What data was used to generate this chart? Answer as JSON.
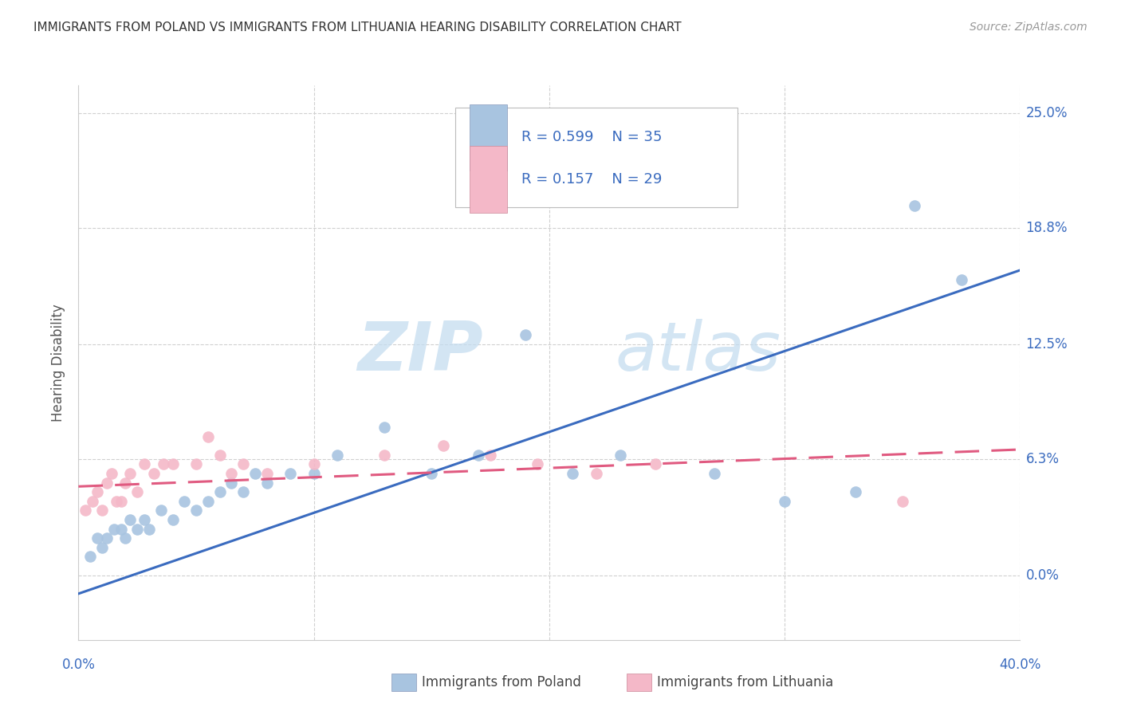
{
  "title": "IMMIGRANTS FROM POLAND VS IMMIGRANTS FROM LITHUANIA HEARING DISABILITY CORRELATION CHART",
  "source": "Source: ZipAtlas.com",
  "ylabel": "Hearing Disability",
  "poland_color": "#a8c4e0",
  "poland_line_color": "#3a6bbf",
  "lithuania_color": "#f4b8c8",
  "lithuania_line_color": "#e05a80",
  "legend_R_poland": "R = 0.599",
  "legend_N_poland": "N = 35",
  "legend_R_lithuania": "R = 0.157",
  "legend_N_lithuania": "N = 29",
  "xmin": 0.0,
  "xmax": 0.4,
  "ymin": -0.035,
  "ymax": 0.265,
  "ytick_vals": [
    0.0,
    0.063,
    0.125,
    0.188,
    0.25
  ],
  "ytick_labels": [
    "0.0%",
    "6.3%",
    "12.5%",
    "18.8%",
    "25.0%"
  ],
  "xtick_vals": [
    0.0,
    0.1,
    0.2,
    0.3,
    0.4
  ],
  "poland_scatter_x": [
    0.005,
    0.008,
    0.01,
    0.012,
    0.015,
    0.018,
    0.02,
    0.022,
    0.025,
    0.028,
    0.03,
    0.035,
    0.04,
    0.045,
    0.05,
    0.055,
    0.06,
    0.065,
    0.07,
    0.075,
    0.08,
    0.09,
    0.1,
    0.11,
    0.13,
    0.15,
    0.17,
    0.19,
    0.21,
    0.23,
    0.27,
    0.3,
    0.33,
    0.355,
    0.375
  ],
  "poland_scatter_y": [
    0.01,
    0.02,
    0.015,
    0.02,
    0.025,
    0.025,
    0.02,
    0.03,
    0.025,
    0.03,
    0.025,
    0.035,
    0.03,
    0.04,
    0.035,
    0.04,
    0.045,
    0.05,
    0.045,
    0.055,
    0.05,
    0.055,
    0.055,
    0.065,
    0.08,
    0.055,
    0.065,
    0.13,
    0.055,
    0.065,
    0.055,
    0.04,
    0.045,
    0.2,
    0.16
  ],
  "lithuania_scatter_x": [
    0.003,
    0.006,
    0.008,
    0.01,
    0.012,
    0.014,
    0.016,
    0.018,
    0.02,
    0.022,
    0.025,
    0.028,
    0.032,
    0.036,
    0.04,
    0.05,
    0.055,
    0.06,
    0.065,
    0.07,
    0.08,
    0.1,
    0.13,
    0.155,
    0.175,
    0.195,
    0.22,
    0.245,
    0.35
  ],
  "lithuania_scatter_y": [
    0.035,
    0.04,
    0.045,
    0.035,
    0.05,
    0.055,
    0.04,
    0.04,
    0.05,
    0.055,
    0.045,
    0.06,
    0.055,
    0.06,
    0.06,
    0.06,
    0.075,
    0.065,
    0.055,
    0.06,
    0.055,
    0.06,
    0.065,
    0.07,
    0.065,
    0.06,
    0.055,
    0.06,
    0.04
  ],
  "poland_trend_x": [
    0.0,
    0.4
  ],
  "poland_trend_y": [
    -0.01,
    0.165
  ],
  "lithuania_trend_x": [
    0.0,
    0.4
  ],
  "lithuania_trend_y": [
    0.048,
    0.068
  ],
  "watermark_zip": "ZIP",
  "watermark_atlas": "atlas",
  "background_color": "#ffffff",
  "grid_color": "#d0d0d0",
  "grid_style": "--",
  "legend_text_color": "#3a6bbf"
}
